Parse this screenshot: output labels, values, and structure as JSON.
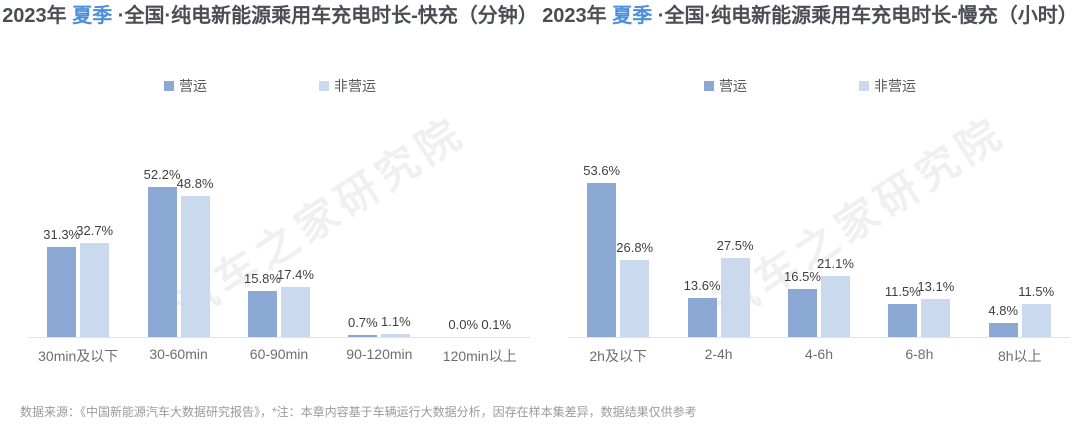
{
  "colors": {
    "operating": "#8ca8d5",
    "non_operating": "#cbd9ef",
    "season_accent": "#4e8fdb",
    "title_text": "#4a4e54"
  },
  "watermark": {
    "text": "汽车之家研究院"
  },
  "footer": {
    "text": "数据来源：《中国新能源汽车大数据研究报告》，*注：本章内容基于车辆运行大数据分析，因存在样本集差异，数据结果仅供参考"
  },
  "chart_data": [
    {
      "type": "bar",
      "title_prefix": "2023年 ",
      "title_season": "夏季",
      "title_suffix": " ·全国·纯电新能源乘用车充电时长-快充（分钟）",
      "categories": [
        "30min及以下",
        "30-60min",
        "60-90min",
        "90-120min",
        "120min以上"
      ],
      "series": [
        {
          "name": "营运",
          "values": [
            31.3,
            52.2,
            15.8,
            0.7,
            0.0
          ]
        },
        {
          "name": "非营运",
          "values": [
            32.7,
            48.8,
            17.4,
            1.1,
            0.1
          ]
        }
      ],
      "unit": "%",
      "value_labels": true,
      "grid": false,
      "y_axis_visible": false,
      "legend_position": "top"
    },
    {
      "type": "bar",
      "title_prefix": "2023年 ",
      "title_season": "夏季",
      "title_suffix": " ·全国·纯电新能源乘用车充电时长-慢充（小时）",
      "categories": [
        "2h及以下",
        "2-4h",
        "4-6h",
        "6-8h",
        "8h以上"
      ],
      "series": [
        {
          "name": "营运",
          "values": [
            53.6,
            13.6,
            16.5,
            11.5,
            4.8
          ]
        },
        {
          "name": "非营运",
          "values": [
            26.8,
            27.5,
            21.1,
            13.1,
            11.5
          ]
        }
      ],
      "unit": "%",
      "value_labels": true,
      "grid": false,
      "y_axis_visible": false,
      "legend_position": "top"
    }
  ]
}
